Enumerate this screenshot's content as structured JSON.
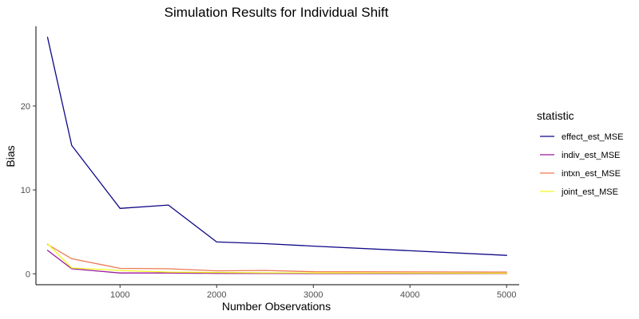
{
  "chart_data": {
    "type": "line",
    "title": "Simulation Results for Individual Shift",
    "xlabel": "Number Observations",
    "ylabel": "Bias",
    "x": [
      250,
      500,
      1000,
      1500,
      2000,
      2500,
      3000,
      5000
    ],
    "xlim": [
      130,
      5130
    ],
    "ylim": [
      -1.3,
      29.5
    ],
    "xticks": [
      1000,
      2000,
      3000,
      4000,
      5000
    ],
    "yticks": [
      0,
      10,
      20
    ],
    "grid": false,
    "legend": {
      "title": "statistic",
      "placement": "right"
    },
    "series": [
      {
        "name": "effect_est_MSE",
        "color": "#0d0887",
        "values": [
          28.2,
          15.3,
          7.8,
          8.2,
          3.8,
          3.6,
          3.3,
          2.2
        ]
      },
      {
        "name": "indiv_est_MSE",
        "color": "#9c179e",
        "values": [
          2.8,
          0.6,
          0.1,
          0.1,
          0.05,
          0.05,
          0.03,
          0.02
        ]
      },
      {
        "name": "intxn_est_MSE",
        "color": "#ed7953",
        "values": [
          3.5,
          1.8,
          0.65,
          0.6,
          0.35,
          0.4,
          0.25,
          0.2
        ]
      },
      {
        "name": "joint_est_MSE",
        "color": "#f0f921",
        "values": [
          3.6,
          0.7,
          0.4,
          0.2,
          0.15,
          0.12,
          0.1,
          0.06
        ]
      }
    ]
  }
}
